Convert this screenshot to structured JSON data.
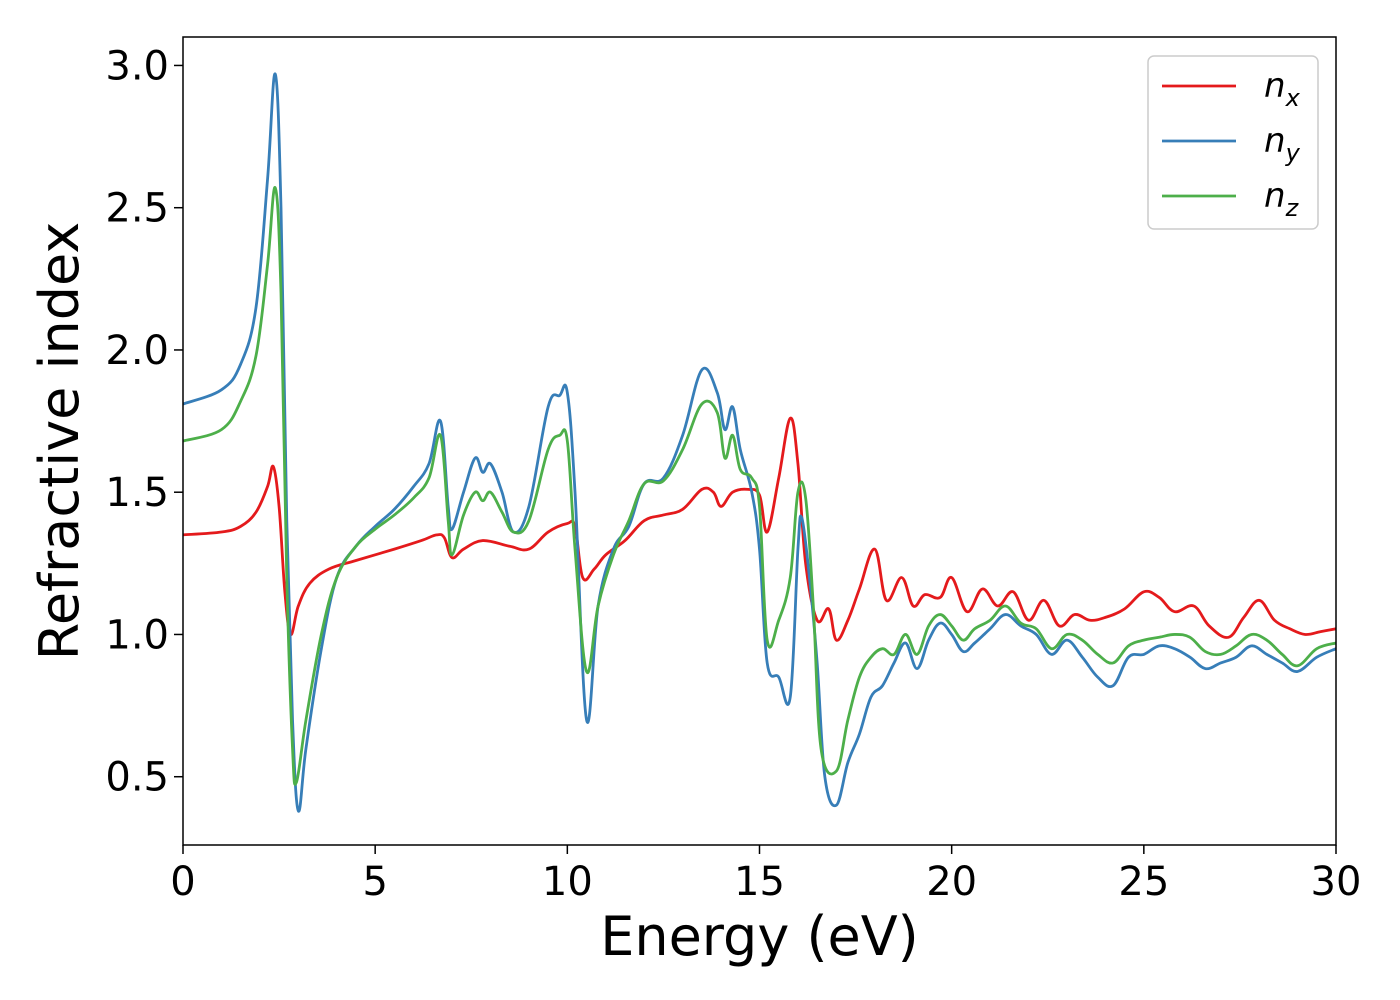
{
  "chart_data": {
    "type": "line",
    "xlabel": "Energy (eV)",
    "ylabel": "Refractive index",
    "xlim": [
      0,
      30
    ],
    "ylim": [
      0.26,
      3.1
    ],
    "xticks": [
      "0",
      "5",
      "10",
      "15",
      "20",
      "25",
      "30"
    ],
    "yticks": [
      "0.5",
      "1.0",
      "1.5",
      "2.0",
      "2.5",
      "3.0"
    ],
    "grid": false,
    "legend_position": "top-right",
    "series": [
      {
        "name": "n_x",
        "label_base": "n",
        "label_sub": "x",
        "color": "#e41a1c",
        "points": [
          [
            0,
            1.35
          ],
          [
            1,
            1.36
          ],
          [
            1.5,
            1.38
          ],
          [
            1.9,
            1.43
          ],
          [
            2.2,
            1.52
          ],
          [
            2.35,
            1.59
          ],
          [
            2.5,
            1.45
          ],
          [
            2.65,
            1.15
          ],
          [
            2.8,
            1.0
          ],
          [
            3.0,
            1.1
          ],
          [
            3.3,
            1.18
          ],
          [
            3.8,
            1.23
          ],
          [
            4.5,
            1.26
          ],
          [
            5.5,
            1.3
          ],
          [
            6.2,
            1.33
          ],
          [
            6.6,
            1.35
          ],
          [
            6.8,
            1.34
          ],
          [
            7.0,
            1.27
          ],
          [
            7.3,
            1.3
          ],
          [
            7.8,
            1.33
          ],
          [
            8.5,
            1.31
          ],
          [
            9.0,
            1.3
          ],
          [
            9.5,
            1.36
          ],
          [
            10.0,
            1.39
          ],
          [
            10.2,
            1.38
          ],
          [
            10.4,
            1.2
          ],
          [
            10.7,
            1.23
          ],
          [
            11.0,
            1.28
          ],
          [
            11.5,
            1.33
          ],
          [
            12.0,
            1.4
          ],
          [
            12.5,
            1.42
          ],
          [
            13.0,
            1.44
          ],
          [
            13.5,
            1.51
          ],
          [
            13.8,
            1.5
          ],
          [
            14.0,
            1.45
          ],
          [
            14.3,
            1.5
          ],
          [
            14.7,
            1.51
          ],
          [
            15.0,
            1.49
          ],
          [
            15.2,
            1.36
          ],
          [
            15.5,
            1.55
          ],
          [
            15.8,
            1.76
          ],
          [
            16.0,
            1.6
          ],
          [
            16.2,
            1.25
          ],
          [
            16.5,
            1.05
          ],
          [
            16.8,
            1.09
          ],
          [
            17.0,
            0.98
          ],
          [
            17.3,
            1.05
          ],
          [
            17.6,
            1.16
          ],
          [
            18.0,
            1.3
          ],
          [
            18.3,
            1.12
          ],
          [
            18.7,
            1.2
          ],
          [
            19.0,
            1.1
          ],
          [
            19.3,
            1.14
          ],
          [
            19.7,
            1.13
          ],
          [
            20.0,
            1.2
          ],
          [
            20.4,
            1.08
          ],
          [
            20.8,
            1.16
          ],
          [
            21.2,
            1.1
          ],
          [
            21.6,
            1.15
          ],
          [
            22.0,
            1.05
          ],
          [
            22.4,
            1.12
          ],
          [
            22.8,
            1.03
          ],
          [
            23.2,
            1.07
          ],
          [
            23.6,
            1.05
          ],
          [
            24.0,
            1.06
          ],
          [
            24.5,
            1.09
          ],
          [
            25.0,
            1.15
          ],
          [
            25.4,
            1.13
          ],
          [
            25.8,
            1.08
          ],
          [
            26.3,
            1.1
          ],
          [
            26.7,
            1.03
          ],
          [
            27.2,
            0.99
          ],
          [
            27.6,
            1.06
          ],
          [
            28.0,
            1.12
          ],
          [
            28.4,
            1.05
          ],
          [
            28.8,
            1.02
          ],
          [
            29.2,
            1.0
          ],
          [
            29.6,
            1.01
          ],
          [
            30.0,
            1.02
          ]
        ]
      },
      {
        "name": "n_y",
        "label_base": "n",
        "label_sub": "y",
        "color": "#377eb8",
        "points": [
          [
            0,
            1.81
          ],
          [
            1,
            1.86
          ],
          [
            1.5,
            1.95
          ],
          [
            1.9,
            2.15
          ],
          [
            2.2,
            2.6
          ],
          [
            2.4,
            2.97
          ],
          [
            2.55,
            2.5
          ],
          [
            2.7,
            1.4
          ],
          [
            2.85,
            0.7
          ],
          [
            3.0,
            0.38
          ],
          [
            3.2,
            0.6
          ],
          [
            3.6,
            0.95
          ],
          [
            4.0,
            1.2
          ],
          [
            4.5,
            1.31
          ],
          [
            5.0,
            1.38
          ],
          [
            5.5,
            1.44
          ],
          [
            6.0,
            1.52
          ],
          [
            6.4,
            1.6
          ],
          [
            6.7,
            1.75
          ],
          [
            6.9,
            1.45
          ],
          [
            7.0,
            1.37
          ],
          [
            7.3,
            1.5
          ],
          [
            7.6,
            1.62
          ],
          [
            7.8,
            1.57
          ],
          [
            8.0,
            1.6
          ],
          [
            8.3,
            1.5
          ],
          [
            8.6,
            1.36
          ],
          [
            9.0,
            1.45
          ],
          [
            9.5,
            1.8
          ],
          [
            9.8,
            1.84
          ],
          [
            10.0,
            1.85
          ],
          [
            10.2,
            1.5
          ],
          [
            10.5,
            0.7
          ],
          [
            10.8,
            1.1
          ],
          [
            11.2,
            1.3
          ],
          [
            11.6,
            1.38
          ],
          [
            12.0,
            1.53
          ],
          [
            12.5,
            1.55
          ],
          [
            13.0,
            1.7
          ],
          [
            13.5,
            1.93
          ],
          [
            13.9,
            1.85
          ],
          [
            14.1,
            1.72
          ],
          [
            14.3,
            1.8
          ],
          [
            14.5,
            1.65
          ],
          [
            14.8,
            1.5
          ],
          [
            15.0,
            1.3
          ],
          [
            15.2,
            0.9
          ],
          [
            15.5,
            0.85
          ],
          [
            15.8,
            0.78
          ],
          [
            16.0,
            1.3
          ],
          [
            16.1,
            1.41
          ],
          [
            16.3,
            1.2
          ],
          [
            16.5,
            0.9
          ],
          [
            16.7,
            0.5
          ],
          [
            17.0,
            0.4
          ],
          [
            17.3,
            0.55
          ],
          [
            17.6,
            0.65
          ],
          [
            17.9,
            0.78
          ],
          [
            18.2,
            0.82
          ],
          [
            18.5,
            0.9
          ],
          [
            18.8,
            0.97
          ],
          [
            19.1,
            0.88
          ],
          [
            19.4,
            0.98
          ],
          [
            19.7,
            1.04
          ],
          [
            20.0,
            1.0
          ],
          [
            20.3,
            0.94
          ],
          [
            20.6,
            0.97
          ],
          [
            21.0,
            1.02
          ],
          [
            21.4,
            1.07
          ],
          [
            21.8,
            1.03
          ],
          [
            22.2,
            1.0
          ],
          [
            22.6,
            0.93
          ],
          [
            23.0,
            0.98
          ],
          [
            23.4,
            0.92
          ],
          [
            23.8,
            0.85
          ],
          [
            24.2,
            0.82
          ],
          [
            24.6,
            0.92
          ],
          [
            25.0,
            0.93
          ],
          [
            25.4,
            0.96
          ],
          [
            25.8,
            0.95
          ],
          [
            26.2,
            0.92
          ],
          [
            26.6,
            0.88
          ],
          [
            27.0,
            0.9
          ],
          [
            27.4,
            0.92
          ],
          [
            27.8,
            0.96
          ],
          [
            28.2,
            0.93
          ],
          [
            28.6,
            0.9
          ],
          [
            29.0,
            0.87
          ],
          [
            29.5,
            0.92
          ],
          [
            30.0,
            0.95
          ]
        ]
      },
      {
        "name": "n_z",
        "label_base": "n",
        "label_sub": "z",
        "color": "#4daf4a",
        "points": [
          [
            0,
            1.68
          ],
          [
            1,
            1.72
          ],
          [
            1.5,
            1.82
          ],
          [
            1.9,
            1.98
          ],
          [
            2.2,
            2.3
          ],
          [
            2.4,
            2.57
          ],
          [
            2.55,
            2.2
          ],
          [
            2.7,
            1.2
          ],
          [
            2.85,
            0.6
          ],
          [
            2.95,
            0.48
          ],
          [
            3.2,
            0.7
          ],
          [
            3.6,
            1.0
          ],
          [
            4.0,
            1.2
          ],
          [
            4.5,
            1.31
          ],
          [
            5.0,
            1.37
          ],
          [
            5.5,
            1.42
          ],
          [
            6.0,
            1.48
          ],
          [
            6.4,
            1.55
          ],
          [
            6.7,
            1.7
          ],
          [
            6.9,
            1.4
          ],
          [
            7.0,
            1.28
          ],
          [
            7.3,
            1.42
          ],
          [
            7.6,
            1.5
          ],
          [
            7.8,
            1.47
          ],
          [
            8.0,
            1.5
          ],
          [
            8.3,
            1.43
          ],
          [
            8.6,
            1.36
          ],
          [
            9.0,
            1.4
          ],
          [
            9.5,
            1.65
          ],
          [
            9.8,
            1.7
          ],
          [
            10.0,
            1.68
          ],
          [
            10.2,
            1.3
          ],
          [
            10.5,
            0.87
          ],
          [
            10.8,
            1.1
          ],
          [
            11.2,
            1.28
          ],
          [
            11.6,
            1.4
          ],
          [
            12.0,
            1.53
          ],
          [
            12.5,
            1.54
          ],
          [
            13.0,
            1.65
          ],
          [
            13.5,
            1.81
          ],
          [
            13.9,
            1.78
          ],
          [
            14.1,
            1.62
          ],
          [
            14.3,
            1.7
          ],
          [
            14.5,
            1.58
          ],
          [
            14.8,
            1.55
          ],
          [
            15.0,
            1.45
          ],
          [
            15.2,
            0.98
          ],
          [
            15.5,
            1.05
          ],
          [
            15.8,
            1.2
          ],
          [
            16.0,
            1.5
          ],
          [
            16.2,
            1.48
          ],
          [
            16.4,
            1.1
          ],
          [
            16.6,
            0.6
          ],
          [
            17.0,
            0.52
          ],
          [
            17.3,
            0.7
          ],
          [
            17.6,
            0.85
          ],
          [
            17.9,
            0.92
          ],
          [
            18.2,
            0.95
          ],
          [
            18.5,
            0.93
          ],
          [
            18.8,
            1.0
          ],
          [
            19.1,
            0.93
          ],
          [
            19.4,
            1.03
          ],
          [
            19.7,
            1.07
          ],
          [
            20.0,
            1.03
          ],
          [
            20.3,
            0.98
          ],
          [
            20.6,
            1.02
          ],
          [
            21.0,
            1.05
          ],
          [
            21.4,
            1.1
          ],
          [
            21.8,
            1.04
          ],
          [
            22.2,
            1.02
          ],
          [
            22.6,
            0.95
          ],
          [
            23.0,
            1.0
          ],
          [
            23.4,
            0.98
          ],
          [
            23.8,
            0.93
          ],
          [
            24.2,
            0.9
          ],
          [
            24.6,
            0.96
          ],
          [
            25.0,
            0.98
          ],
          [
            25.4,
            0.99
          ],
          [
            25.8,
            1.0
          ],
          [
            26.2,
            0.99
          ],
          [
            26.6,
            0.94
          ],
          [
            27.0,
            0.93
          ],
          [
            27.4,
            0.96
          ],
          [
            27.8,
            1.0
          ],
          [
            28.2,
            0.98
          ],
          [
            28.6,
            0.93
          ],
          [
            29.0,
            0.89
          ],
          [
            29.5,
            0.95
          ],
          [
            30.0,
            0.97
          ]
        ]
      }
    ]
  }
}
